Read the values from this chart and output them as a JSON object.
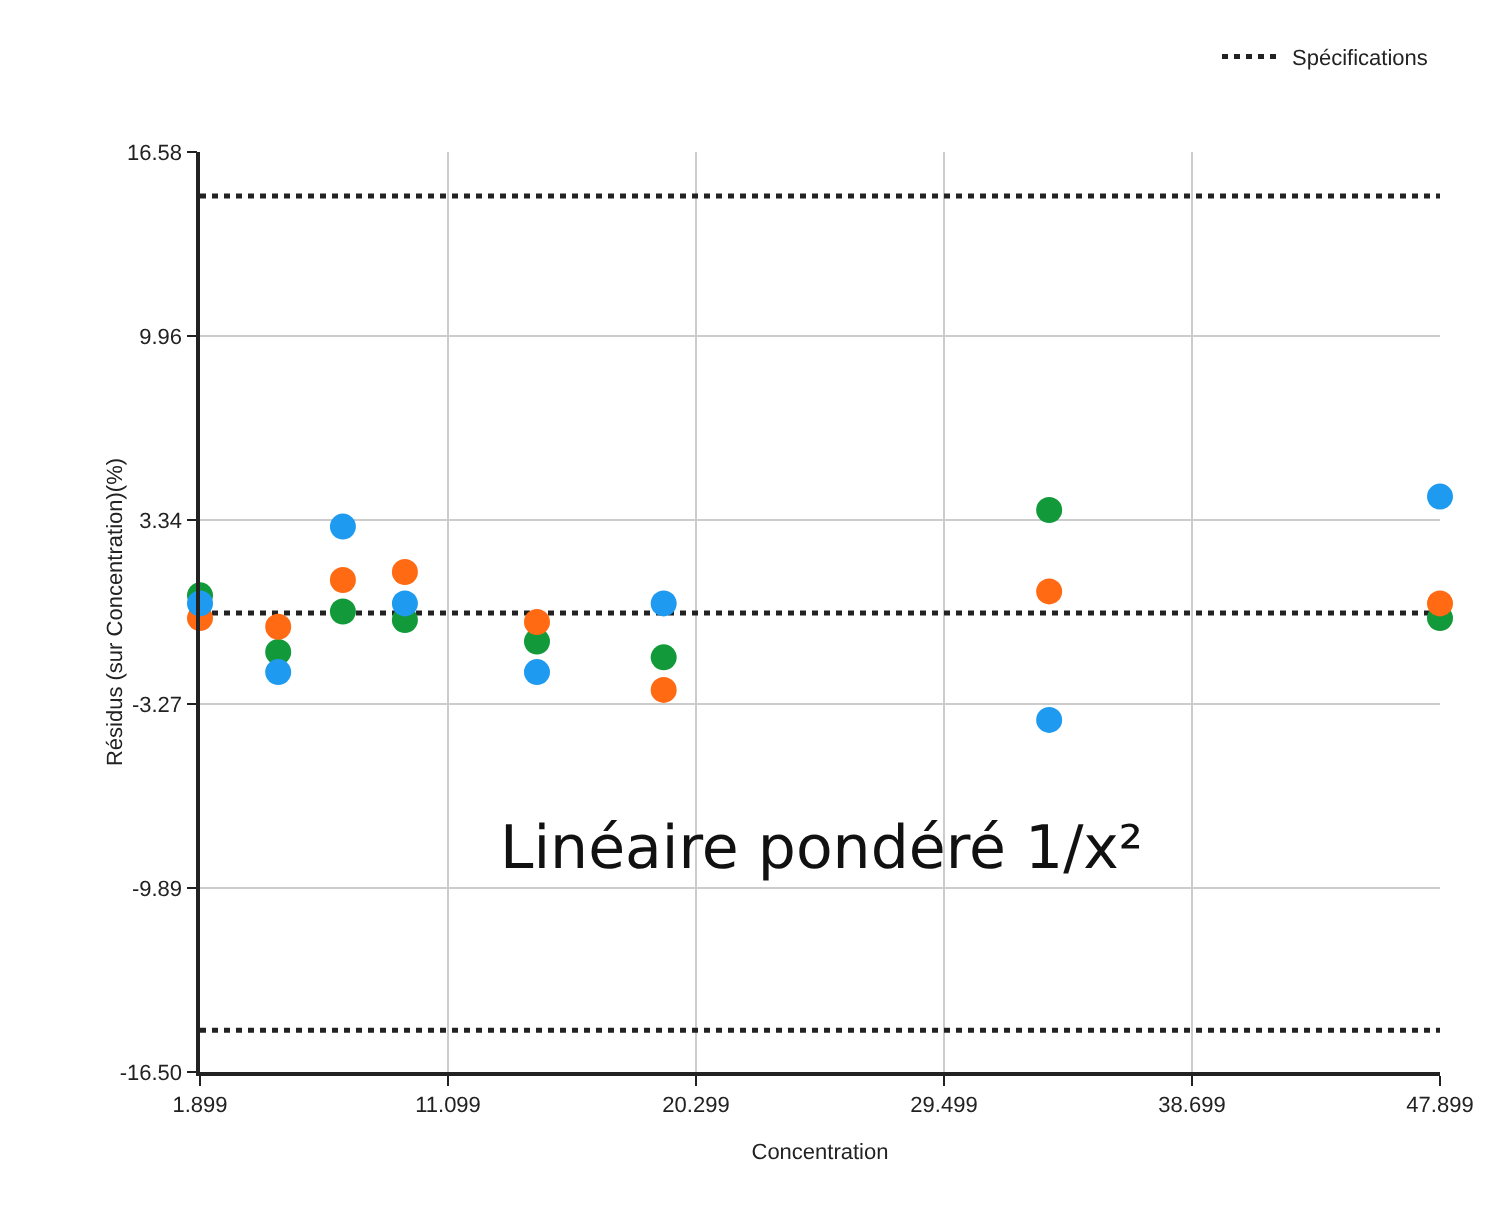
{
  "chart_data": {
    "type": "scatter",
    "xlabel": "Concentration",
    "ylabel": "Résidus (sur Concentration)(%)",
    "xlim": [
      1.899,
      47.899
    ],
    "xticks": [
      1.899,
      11.099,
      20.299,
      29.499,
      38.699,
      47.899
    ],
    "ylim": [
      -16.5,
      16.58
    ],
    "yticks": [
      {
        "value": -16.5,
        "label": "-16.50"
      },
      -9.89,
      -3.27,
      3.34,
      9.96,
      16.58
    ],
    "grid": true,
    "marker": "circle",
    "legend": "top right",
    "x": [
      1.899,
      4.8,
      7.2,
      9.5,
      14.4,
      19.1,
      33.4,
      47.899
    ],
    "series": [
      {
        "color": "#1e9bf0",
        "values": [
          0.35,
          -2.12,
          3.11,
          0.35,
          -2.12,
          0.35,
          -3.84,
          4.19
        ]
      },
      {
        "color": "#ff6a13",
        "values": [
          -0.18,
          -0.49,
          1.19,
          1.48,
          -0.32,
          -2.76,
          0.78,
          0.35
        ]
      },
      {
        "color": "#129a3a",
        "values": [
          0.64,
          -1.4,
          0.06,
          -0.25,
          -1.02,
          -1.59,
          3.71,
          -0.18
        ]
      }
    ],
    "ref_lines": [
      {
        "axis": "y",
        "value": 15,
        "label": "Spécifications",
        "color": "#222222",
        "line_style": "dotted"
      },
      {
        "axis": "y",
        "value": 0,
        "color": "#222222",
        "line_style": "dotted"
      },
      {
        "axis": "y",
        "value": -15,
        "color": "#222222",
        "line_style": "dotted"
      }
    ],
    "annotations": [
      "Linéaire pondéré 1/x²"
    ]
  }
}
